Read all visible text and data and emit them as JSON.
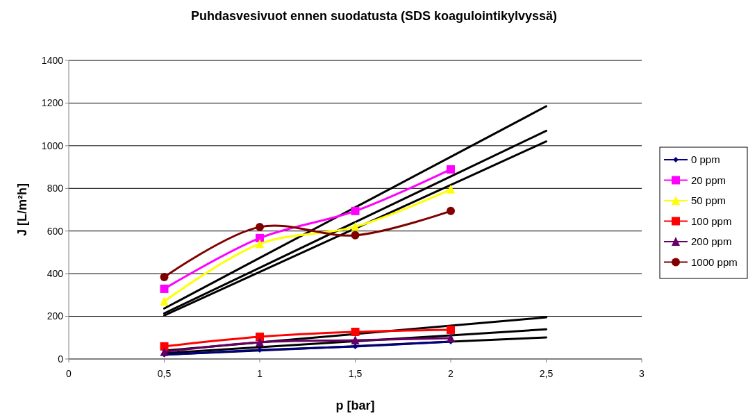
{
  "chart_data": {
    "type": "line",
    "title": "Puhdasvesivuot ennen suodatusta (SDS koagulointikylvyssä)",
    "xlabel": "p [bar]",
    "ylabel": "J [L/m²h]",
    "x": [
      0.5,
      1,
      1.5,
      2,
      2.5
    ],
    "series": [
      {
        "name": "0 ppm",
        "color": "#000080",
        "marker": "diamond",
        "values": [
          20,
          42,
          59,
          81,
          null
        ]
      },
      {
        "name": "20 ppm",
        "color": "#ff00ff",
        "marker": "square",
        "values": [
          329,
          567,
          694,
          889,
          null
        ]
      },
      {
        "name": "50 ppm",
        "color": "#ffff00",
        "marker": "triangle",
        "values": [
          270,
          540,
          620,
          795,
          null
        ]
      },
      {
        "name": "100 ppm",
        "color": "#ff0000",
        "marker": "square",
        "values": [
          59,
          104,
          127,
          137,
          null
        ]
      },
      {
        "name": "200 ppm",
        "color": "#660066",
        "marker": "triangle",
        "values": [
          33,
          78,
          88,
          98,
          null
        ]
      },
      {
        "name": "1000 ppm",
        "color": "#800000",
        "marker": "circle",
        "values": [
          384,
          619,
          580,
          694,
          null
        ]
      },
      {
        "color": "#000000",
        "marker": "none",
        "values": [
          237,
          474,
          711,
          948,
          1185
        ]
      },
      {
        "color": "#000000",
        "marker": "none",
        "values": [
          214,
          428,
          642,
          856,
          1070
        ]
      },
      {
        "color": "#000000",
        "marker": "none",
        "values": [
          204,
          408,
          612,
          816,
          1020
        ]
      },
      {
        "color": "#000000",
        "marker": "none",
        "values": [
          39,
          78,
          117,
          156,
          195
        ]
      },
      {
        "color": "#000000",
        "marker": "none",
        "values": [
          27,
          55,
          83,
          111,
          139
        ]
      },
      {
        "color": "#000000",
        "marker": "none",
        "values": [
          20,
          40,
          60,
          81,
          101
        ]
      }
    ],
    "xlim": [
      0,
      3
    ],
    "xticks": [
      0,
      {
        "value": 0.5,
        "label": "0,5"
      },
      1,
      {
        "value": 1.5,
        "label": "1,5"
      },
      2,
      {
        "value": 2.5,
        "label": "2,5"
      },
      3
    ],
    "ylim": [
      0,
      1400
    ],
    "yticks": [
      0,
      200,
      400,
      600,
      800,
      1000,
      1200,
      1400
    ],
    "grid": "y",
    "legend": "right"
  }
}
